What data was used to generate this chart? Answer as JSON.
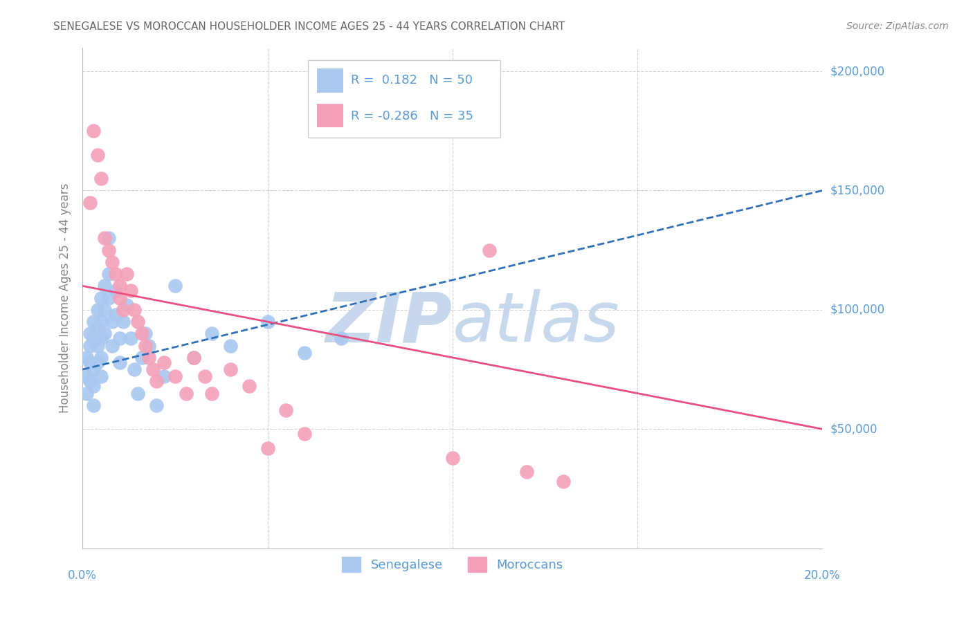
{
  "title": "SENEGALESE VS MOROCCAN HOUSEHOLDER INCOME AGES 25 - 44 YEARS CORRELATION CHART",
  "source": "Source: ZipAtlas.com",
  "ylabel": "Householder Income Ages 25 - 44 years",
  "xlim": [
    0.0,
    0.2
  ],
  "ylim": [
    0,
    210000
  ],
  "yticks": [
    0,
    50000,
    100000,
    150000,
    200000
  ],
  "ytick_labels": [
    "",
    "$50,000",
    "$100,000",
    "$150,000",
    "$200,000"
  ],
  "xticks": [
    0.0,
    0.05,
    0.1,
    0.15,
    0.2
  ],
  "blue_color": "#A8C8F0",
  "pink_color": "#F4A0B8",
  "blue_line_color": "#3070B8",
  "pink_line_color": "#E85080",
  "label_color": "#5B9BD5",
  "grid_color": "#CCCCCC",
  "watermark_color": "#C8D8EC",
  "background": "#FFFFFF",
  "blue_trend_x0": 0.0,
  "blue_trend_y0": 75000,
  "blue_trend_x1": 0.2,
  "blue_trend_y1": 150000,
  "pink_trend_x0": 0.0,
  "pink_trend_y0": 110000,
  "pink_trend_x1": 0.2,
  "pink_trend_y1": 50000,
  "senegalese_x": [
    0.001,
    0.001,
    0.001,
    0.002,
    0.002,
    0.002,
    0.002,
    0.003,
    0.003,
    0.003,
    0.003,
    0.003,
    0.004,
    0.004,
    0.004,
    0.004,
    0.005,
    0.005,
    0.005,
    0.005,
    0.005,
    0.006,
    0.006,
    0.006,
    0.007,
    0.007,
    0.007,
    0.008,
    0.008,
    0.009,
    0.009,
    0.01,
    0.01,
    0.011,
    0.012,
    0.013,
    0.014,
    0.015,
    0.016,
    0.017,
    0.018,
    0.02,
    0.022,
    0.025,
    0.03,
    0.035,
    0.04,
    0.05,
    0.06,
    0.07
  ],
  "senegalese_y": [
    72000,
    80000,
    65000,
    85000,
    78000,
    70000,
    90000,
    95000,
    88000,
    75000,
    68000,
    60000,
    100000,
    92000,
    85000,
    78000,
    105000,
    95000,
    88000,
    80000,
    72000,
    110000,
    100000,
    90000,
    130000,
    115000,
    105000,
    95000,
    85000,
    108000,
    98000,
    88000,
    78000,
    95000,
    102000,
    88000,
    75000,
    65000,
    80000,
    90000,
    85000,
    60000,
    72000,
    110000,
    80000,
    90000,
    85000,
    95000,
    82000,
    88000
  ],
  "moroccan_x": [
    0.002,
    0.003,
    0.004,
    0.005,
    0.006,
    0.007,
    0.008,
    0.009,
    0.01,
    0.01,
    0.011,
    0.012,
    0.013,
    0.014,
    0.015,
    0.016,
    0.017,
    0.018,
    0.019,
    0.02,
    0.022,
    0.025,
    0.028,
    0.03,
    0.033,
    0.035,
    0.04,
    0.045,
    0.05,
    0.055,
    0.06,
    0.1,
    0.11,
    0.12,
    0.13
  ],
  "moroccan_y": [
    145000,
    175000,
    165000,
    155000,
    130000,
    125000,
    120000,
    115000,
    110000,
    105000,
    100000,
    115000,
    108000,
    100000,
    95000,
    90000,
    85000,
    80000,
    75000,
    70000,
    78000,
    72000,
    65000,
    80000,
    72000,
    65000,
    75000,
    68000,
    42000,
    58000,
    48000,
    38000,
    125000,
    32000,
    28000
  ]
}
